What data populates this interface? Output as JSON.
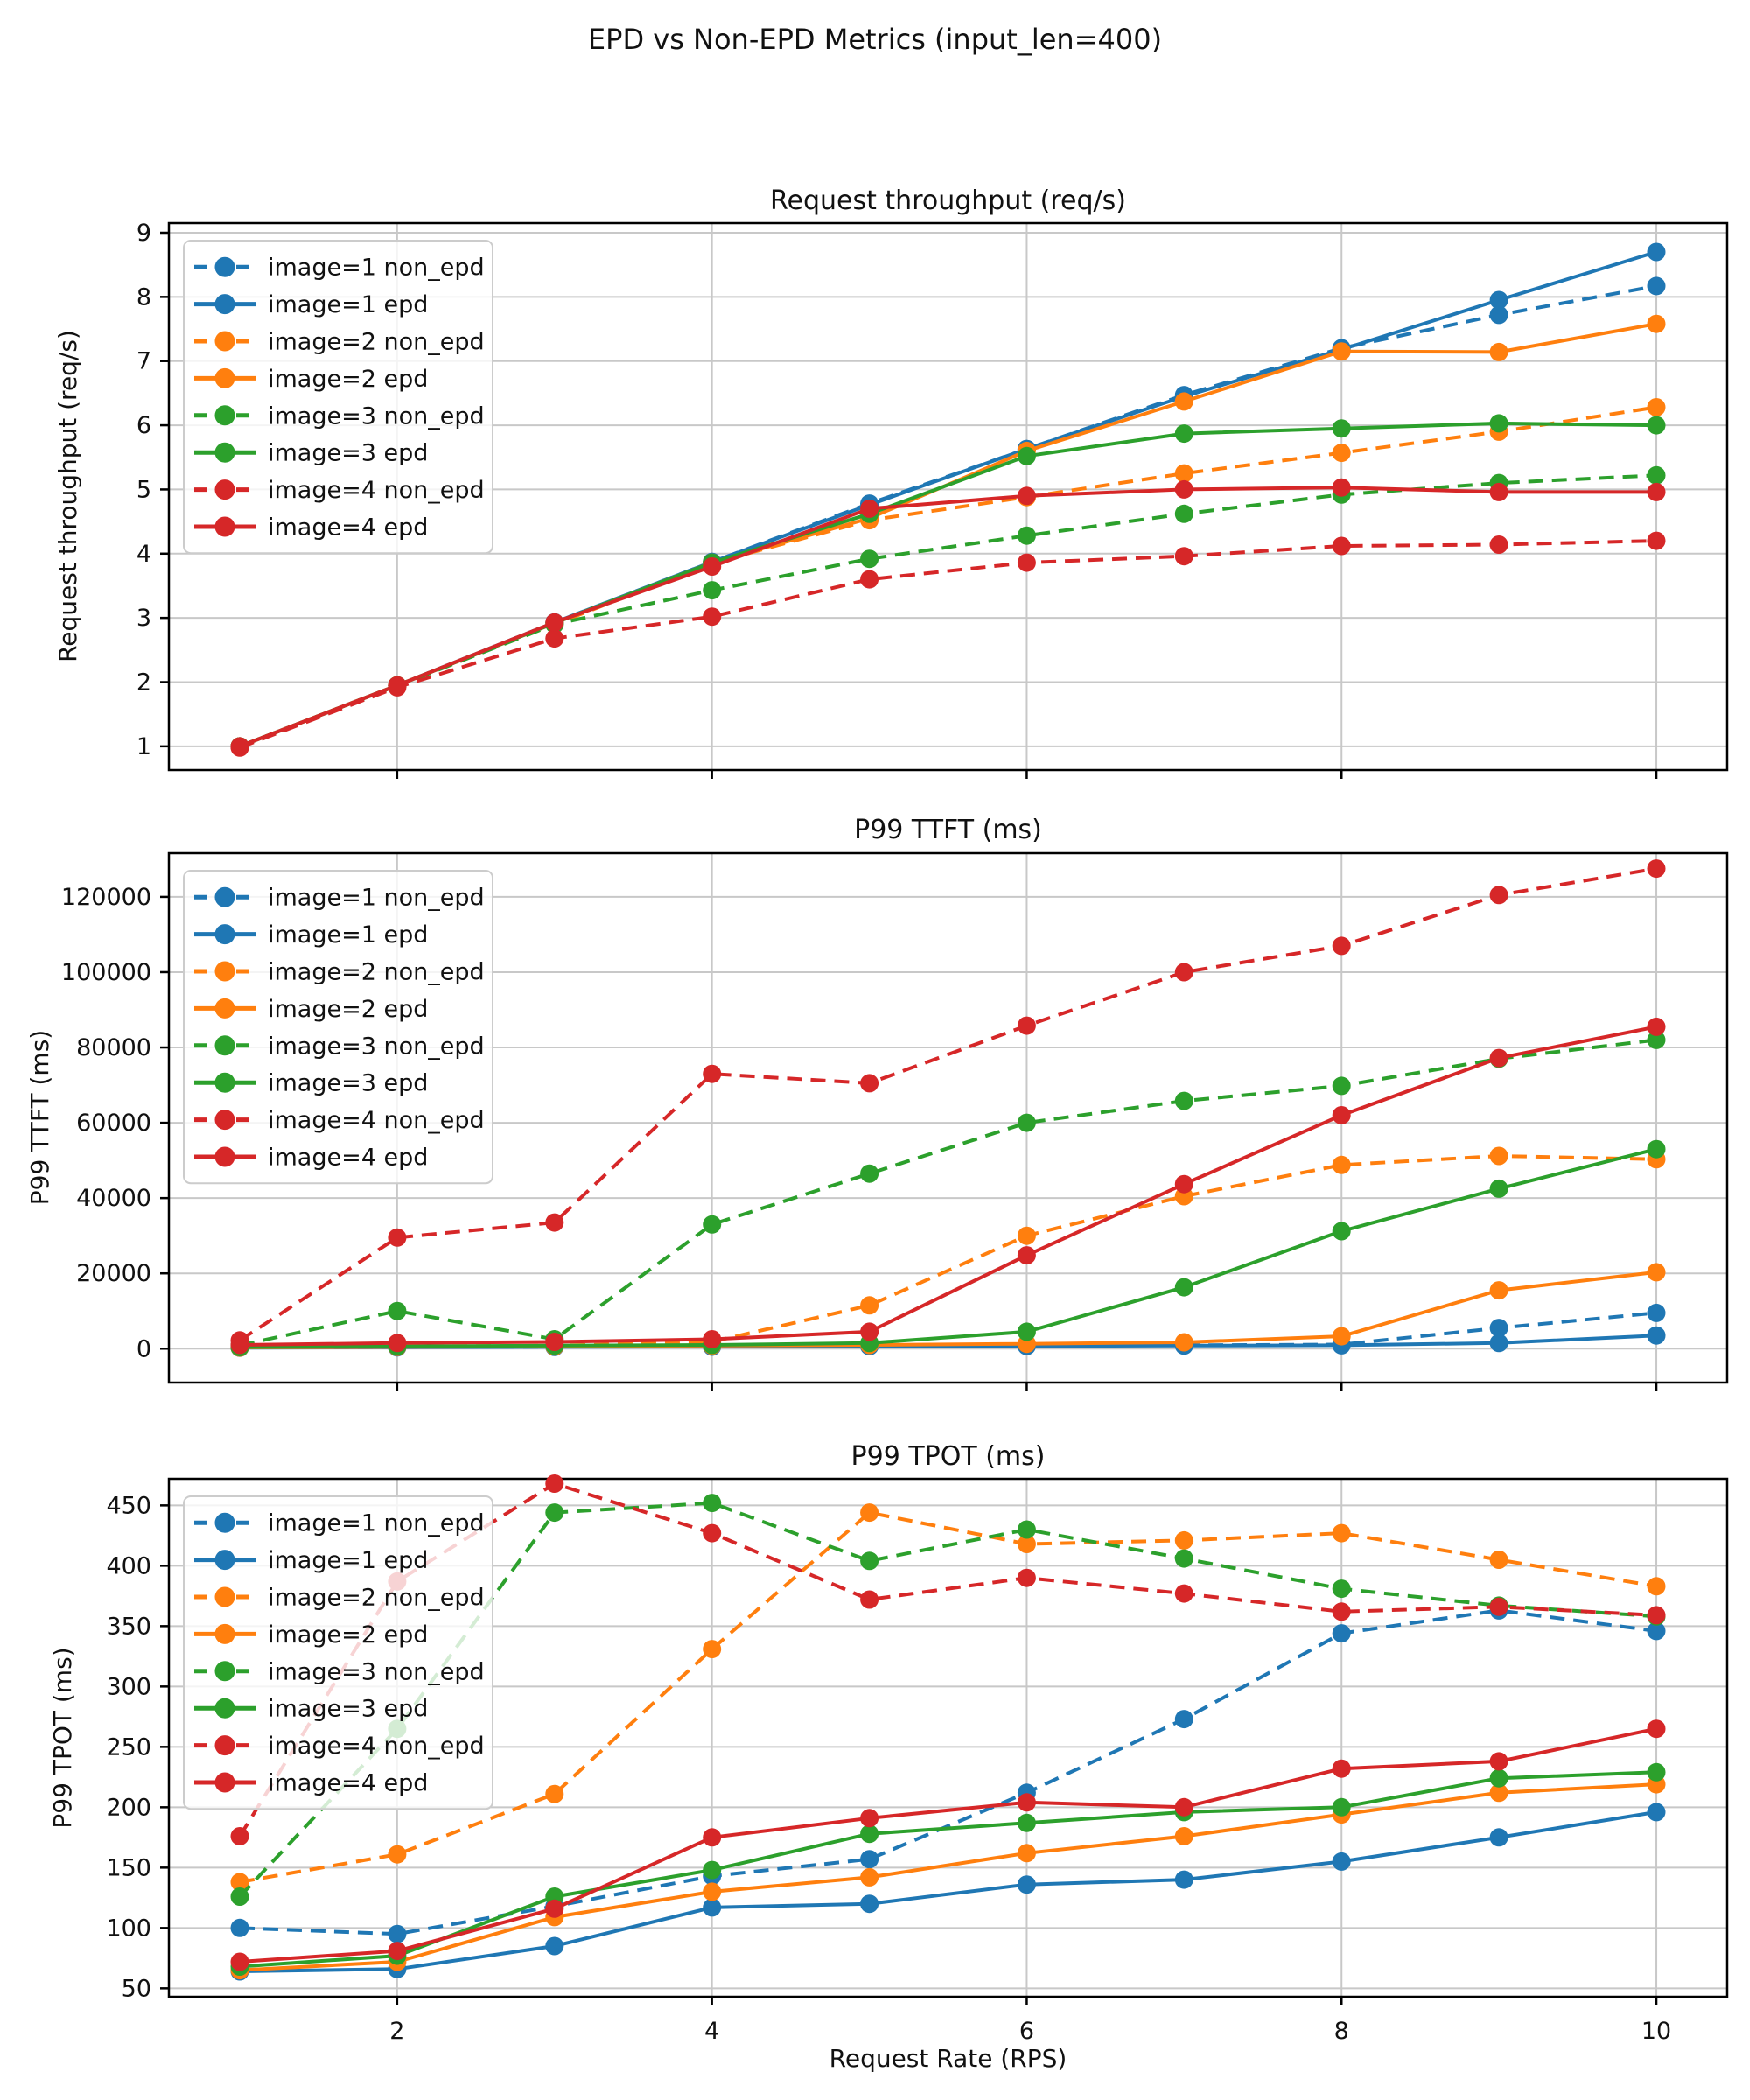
{
  "figure": {
    "suptitle": "EPD vs Non-EPD Metrics (input_len=400)",
    "xlabel": "Request Rate (RPS)",
    "background_color": "#ffffff",
    "grid_color": "#c8c8c8",
    "spine_color": "#000000",
    "legend_position": "upper left",
    "series_styles": [
      {
        "name": "image=1 non_epd",
        "color": "#1f77b4",
        "dashed": true
      },
      {
        "name": "image=1 epd",
        "color": "#1f77b4",
        "dashed": false
      },
      {
        "name": "image=2 non_epd",
        "color": "#ff7f0e",
        "dashed": true
      },
      {
        "name": "image=2 epd",
        "color": "#ff7f0e",
        "dashed": false
      },
      {
        "name": "image=3 non_epd",
        "color": "#2ca02c",
        "dashed": true
      },
      {
        "name": "image=3 epd",
        "color": "#2ca02c",
        "dashed": false
      },
      {
        "name": "image=4 non_epd",
        "color": "#d62728",
        "dashed": true
      },
      {
        "name": "image=4 epd",
        "color": "#d62728",
        "dashed": false
      }
    ]
  },
  "chart_data": [
    {
      "type": "line",
      "title": "Request throughput (req/s)",
      "ylabel": "Request throughput (req/s)",
      "xlabel": "Request Rate (RPS)",
      "x": [
        1,
        2,
        3,
        4,
        5,
        6,
        7,
        8,
        9,
        10
      ],
      "xticks": [
        2,
        4,
        6,
        8,
        10
      ],
      "xlim": [
        0.55,
        10.45
      ],
      "ylim": [
        0.63,
        9.15
      ],
      "yticks": [
        1,
        2,
        3,
        4,
        5,
        6,
        7,
        8,
        9
      ],
      "grid": true,
      "legend_position": "upper left",
      "series": [
        {
          "name": "image=1 non_epd",
          "values": [
            1.0,
            1.95,
            2.93,
            3.87,
            4.78,
            5.63,
            6.47,
            7.2,
            7.72,
            8.17
          ]
        },
        {
          "name": "image=1 epd",
          "values": [
            1.0,
            1.95,
            2.93,
            3.87,
            4.76,
            5.63,
            6.45,
            7.18,
            7.95,
            8.7
          ]
        },
        {
          "name": "image=2 non_epd",
          "values": [
            1.0,
            1.95,
            2.9,
            3.85,
            4.52,
            4.88,
            5.25,
            5.57,
            5.9,
            6.28
          ]
        },
        {
          "name": "image=2 epd",
          "values": [
            1.0,
            1.95,
            2.92,
            3.86,
            4.55,
            5.6,
            6.37,
            7.15,
            7.14,
            7.58
          ]
        },
        {
          "name": "image=3 non_epd",
          "values": [
            1.0,
            1.94,
            2.9,
            3.43,
            3.92,
            4.28,
            4.62,
            4.92,
            5.1,
            5.22
          ]
        },
        {
          "name": "image=3 epd",
          "values": [
            1.0,
            1.95,
            2.92,
            3.86,
            4.62,
            5.52,
            5.87,
            5.95,
            6.03,
            6.0
          ]
        },
        {
          "name": "image=4 non_epd",
          "values": [
            0.98,
            1.92,
            2.68,
            3.02,
            3.6,
            3.86,
            3.96,
            4.12,
            4.14,
            4.2
          ]
        },
        {
          "name": "image=4 epd",
          "values": [
            1.0,
            1.95,
            2.93,
            3.8,
            4.7,
            4.9,
            5.0,
            5.03,
            4.96,
            4.96
          ]
        }
      ]
    },
    {
      "type": "line",
      "title": "P99 TTFT (ms)",
      "ylabel": "P99 TTFT (ms)",
      "xlabel": "Request Rate (RPS)",
      "x": [
        1,
        2,
        3,
        4,
        5,
        6,
        7,
        8,
        9,
        10
      ],
      "xticks": [
        2,
        4,
        6,
        8,
        10
      ],
      "xlim": [
        0.55,
        10.45
      ],
      "ylim": [
        -9000,
        131600
      ],
      "yticks": [
        0,
        20000,
        40000,
        60000,
        80000,
        100000,
        120000
      ],
      "grid": true,
      "legend_position": "upper left",
      "series": [
        {
          "name": "image=1 non_epd",
          "values": [
            300,
            400,
            500,
            600,
            700,
            800,
            900,
            1100,
            5500,
            9500
          ]
        },
        {
          "name": "image=1 epd",
          "values": [
            250,
            350,
            450,
            550,
            650,
            700,
            800,
            900,
            1500,
            3500
          ]
        },
        {
          "name": "image=2 non_epd",
          "values": [
            400,
            600,
            800,
            1800,
            11500,
            30000,
            40500,
            48800,
            51200,
            50300
          ]
        },
        {
          "name": "image=2 epd",
          "values": [
            300,
            450,
            600,
            800,
            1000,
            1300,
            1700,
            3300,
            15500,
            20300
          ]
        },
        {
          "name": "image=3 non_epd",
          "values": [
            900,
            10000,
            2500,
            33000,
            46500,
            60000,
            65800,
            69800,
            77000,
            82000
          ]
        },
        {
          "name": "image=3 epd",
          "values": [
            400,
            600,
            800,
            1000,
            1500,
            4500,
            16300,
            31200,
            42500,
            53000
          ]
        },
        {
          "name": "image=4 non_epd",
          "values": [
            2200,
            29500,
            33500,
            73000,
            70500,
            85800,
            100000,
            107000,
            120500,
            127500
          ]
        },
        {
          "name": "image=4 epd",
          "values": [
            1000,
            1500,
            1800,
            2500,
            4500,
            24800,
            43700,
            62000,
            77200,
            85500
          ]
        }
      ]
    },
    {
      "type": "line",
      "title": "P99 TPOT (ms)",
      "ylabel": "P99 TPOT (ms)",
      "xlabel": "Request Rate (RPS)",
      "x": [
        1,
        2,
        3,
        4,
        5,
        6,
        7,
        8,
        9,
        10
      ],
      "xticks": [
        2,
        4,
        6,
        8,
        10
      ],
      "xlim": [
        0.55,
        10.45
      ],
      "ylim": [
        43,
        472
      ],
      "yticks": [
        50,
        100,
        150,
        200,
        250,
        300,
        350,
        400,
        450
      ],
      "grid": true,
      "legend_position": "upper left",
      "series": [
        {
          "name": "image=1 non_epd",
          "values": [
            100,
            95,
            118,
            143,
            157,
            212,
            273,
            344,
            363,
            346
          ]
        },
        {
          "name": "image=1 epd",
          "values": [
            64,
            66,
            85,
            117,
            120,
            136,
            140,
            155,
            175,
            196
          ]
        },
        {
          "name": "image=2 non_epd",
          "values": [
            138,
            161,
            211,
            331,
            444,
            418,
            421,
            427,
            405,
            383
          ]
        },
        {
          "name": "image=2 epd",
          "values": [
            65,
            72,
            109,
            130,
            142,
            162,
            176,
            194,
            212,
            219
          ]
        },
        {
          "name": "image=3 non_epd",
          "values": [
            126,
            265,
            444,
            452,
            404,
            430,
            406,
            381,
            367,
            358
          ]
        },
        {
          "name": "image=3 epd",
          "values": [
            68,
            77,
            126,
            148,
            178,
            187,
            196,
            200,
            224,
            229
          ]
        },
        {
          "name": "image=4 non_epd",
          "values": [
            176,
            387,
            468,
            427,
            372,
            390,
            377,
            362,
            366,
            359
          ]
        },
        {
          "name": "image=4 epd",
          "values": [
            72,
            81,
            116,
            175,
            191,
            204,
            200,
            232,
            238,
            265
          ]
        }
      ]
    }
  ]
}
